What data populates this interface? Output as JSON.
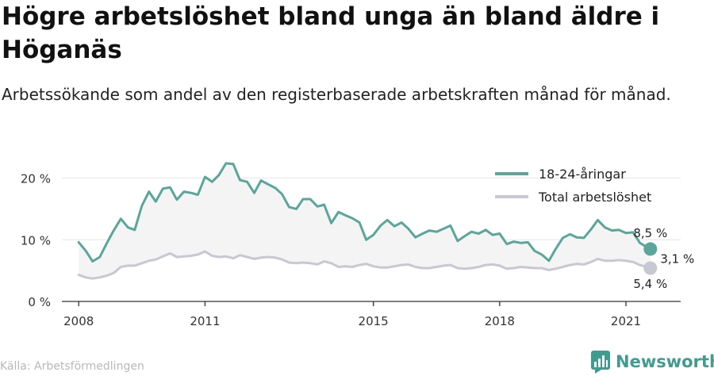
{
  "header": {
    "title": "Högre arbetslöshet bland unga än bland äldre i Höganäs",
    "subtitle": "Arbetssökande som andel av den registerbaserade arbetskraften månad för månad."
  },
  "footer": {
    "source": "Källa: Arbetsförmedlingen",
    "brand": "Newsworthy"
  },
  "colors": {
    "youth": "#5aa69b",
    "total": "#c8c8d3",
    "band": "#f4f4f4",
    "axis": "#333333",
    "brand": "#3f9c8f"
  },
  "chart_data": {
    "type": "line",
    "xlim": [
      2007.6,
      2022.3
    ],
    "ylim": [
      0,
      23.8
    ],
    "x_ticks": [
      {
        "value": 2008,
        "label": "2008"
      },
      {
        "value": 2011,
        "label": "2011"
      },
      {
        "value": 2015,
        "label": "2015"
      },
      {
        "value": 2018,
        "label": "2018"
      },
      {
        "value": 2021,
        "label": "2021"
      }
    ],
    "y_ticks": [
      {
        "value": 0,
        "label": "0 %"
      },
      {
        "value": 10,
        "label": "10 %"
      },
      {
        "value": 20,
        "label": "20 %"
      }
    ],
    "legend_position": "top-right",
    "series": [
      {
        "name": "18-24-åringar",
        "color": "#5aa69b",
        "end_label": "8,5 %",
        "x": [
          2008.0,
          2008.17,
          2008.33,
          2008.5,
          2008.67,
          2008.83,
          2009.0,
          2009.17,
          2009.33,
          2009.5,
          2009.67,
          2009.83,
          2010.0,
          2010.17,
          2010.33,
          2010.5,
          2010.67,
          2010.83,
          2011.0,
          2011.17,
          2011.33,
          2011.5,
          2011.67,
          2011.83,
          2012.0,
          2012.17,
          2012.33,
          2012.5,
          2012.67,
          2012.83,
          2013.0,
          2013.17,
          2013.33,
          2013.5,
          2013.67,
          2013.83,
          2014.0,
          2014.17,
          2014.33,
          2014.5,
          2014.67,
          2014.83,
          2015.0,
          2015.17,
          2015.33,
          2015.5,
          2015.67,
          2015.83,
          2016.0,
          2016.17,
          2016.33,
          2016.5,
          2016.67,
          2016.83,
          2017.0,
          2017.17,
          2017.33,
          2017.5,
          2017.67,
          2017.83,
          2018.0,
          2018.17,
          2018.33,
          2018.5,
          2018.67,
          2018.83,
          2019.0,
          2019.17,
          2019.33,
          2019.5,
          2019.67,
          2019.83,
          2020.0,
          2020.17,
          2020.33,
          2020.5,
          2020.67,
          2020.83,
          2021.0,
          2021.17,
          2021.33,
          2021.58
        ],
        "values": [
          9.6,
          8.2,
          6.5,
          7.2,
          9.5,
          11.5,
          13.4,
          12.0,
          11.6,
          15.5,
          17.8,
          16.2,
          18.3,
          18.5,
          16.5,
          17.8,
          17.6,
          17.3,
          20.2,
          19.4,
          20.5,
          22.4,
          22.3,
          19.7,
          19.4,
          17.6,
          19.6,
          19.0,
          18.4,
          17.4,
          15.3,
          15.0,
          16.6,
          16.6,
          15.4,
          15.7,
          12.7,
          14.5,
          14.0,
          13.5,
          12.8,
          10.0,
          10.8,
          12.3,
          13.2,
          12.2,
          12.8,
          11.8,
          10.4,
          11.0,
          11.5,
          11.3,
          11.8,
          12.3,
          9.8,
          10.6,
          11.3,
          11.0,
          11.6,
          10.8,
          11.0,
          9.3,
          9.7,
          9.5,
          9.6,
          8.2,
          7.6,
          6.6,
          8.5,
          10.3,
          10.9,
          10.4,
          10.3,
          11.7,
          13.2,
          12.0,
          11.5,
          11.6,
          11.1,
          11.2,
          9.5,
          8.5
        ]
      },
      {
        "name": "Total arbetslöshet",
        "color": "#c8c8d3",
        "end_label": "5,4 %",
        "x": [
          2008.0,
          2008.17,
          2008.33,
          2008.5,
          2008.67,
          2008.83,
          2009.0,
          2009.17,
          2009.33,
          2009.5,
          2009.67,
          2009.83,
          2010.0,
          2010.17,
          2010.33,
          2010.5,
          2010.67,
          2010.83,
          2011.0,
          2011.17,
          2011.33,
          2011.5,
          2011.67,
          2011.83,
          2012.0,
          2012.17,
          2012.33,
          2012.5,
          2012.67,
          2012.83,
          2013.0,
          2013.17,
          2013.33,
          2013.5,
          2013.67,
          2013.83,
          2014.0,
          2014.17,
          2014.33,
          2014.5,
          2014.67,
          2014.83,
          2015.0,
          2015.17,
          2015.33,
          2015.5,
          2015.67,
          2015.83,
          2016.0,
          2016.17,
          2016.33,
          2016.5,
          2016.67,
          2016.83,
          2017.0,
          2017.17,
          2017.33,
          2017.5,
          2017.67,
          2017.83,
          2018.0,
          2018.17,
          2018.33,
          2018.5,
          2018.67,
          2018.83,
          2019.0,
          2019.17,
          2019.33,
          2019.5,
          2019.67,
          2019.83,
          2020.0,
          2020.17,
          2020.33,
          2020.5,
          2020.67,
          2020.83,
          2021.0,
          2021.17,
          2021.33,
          2021.58
        ],
        "values": [
          4.3,
          3.9,
          3.7,
          3.9,
          4.2,
          4.6,
          5.6,
          5.8,
          5.8,
          6.2,
          6.6,
          6.8,
          7.3,
          7.8,
          7.2,
          7.3,
          7.4,
          7.6,
          8.1,
          7.4,
          7.2,
          7.3,
          7.0,
          7.5,
          7.2,
          6.9,
          7.1,
          7.2,
          7.1,
          6.8,
          6.3,
          6.2,
          6.3,
          6.2,
          6.0,
          6.5,
          6.2,
          5.6,
          5.7,
          5.6,
          5.9,
          6.1,
          5.7,
          5.5,
          5.5,
          5.7,
          5.9,
          6.0,
          5.6,
          5.4,
          5.4,
          5.6,
          5.8,
          5.9,
          5.4,
          5.3,
          5.4,
          5.6,
          5.9,
          6.0,
          5.8,
          5.3,
          5.4,
          5.6,
          5.5,
          5.4,
          5.4,
          5.1,
          5.3,
          5.6,
          5.9,
          6.1,
          6.0,
          6.4,
          6.9,
          6.6,
          6.6,
          6.7,
          6.6,
          6.4,
          5.9,
          5.4
        ]
      }
    ],
    "annotations": [
      {
        "text": "3,1 %",
        "x": 2021.58,
        "y": 7.0
      }
    ]
  }
}
